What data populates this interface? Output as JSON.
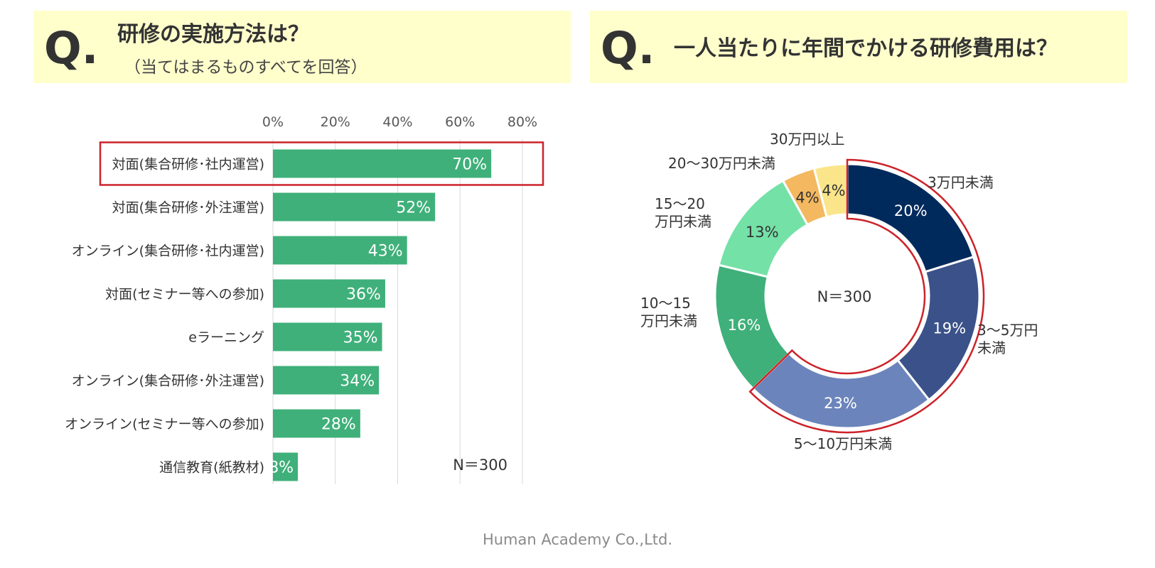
{
  "left_panel": {
    "q_mark": "Q.",
    "title": "研修の実施方法は？",
    "subtitle": "（当てはまるものすべてを回答）"
  },
  "right_panel": {
    "q_mark": "Q.",
    "title": "一人当たりに年間でかける研修費用は？"
  },
  "footer": "Human Academy Co.,Ltd.",
  "colors": {
    "bar": "#3fb07a",
    "highlight": "#cc2229",
    "panel_bg": "#ffffcc"
  },
  "chart_data": [
    {
      "type": "bar",
      "orientation": "horizontal",
      "categories": [
        "対面(集合研修･社内運営)",
        "対面(集合研修･外注運営)",
        "オンライン(集合研修･社内運営)",
        "対面(セミナー等への参加)",
        "eラーニング",
        "オンライン(集合研修･外注運営)",
        "オンライン(セミナー等への参加)",
        "通信教育(紙教材)"
      ],
      "values": [
        70,
        52,
        43,
        36,
        35,
        34,
        28,
        8
      ],
      "value_labels": [
        "70%",
        "52%",
        "43%",
        "36%",
        "35%",
        "34%",
        "28%",
        "8%"
      ],
      "xlim": [
        0,
        80
      ],
      "xticks": [
        "0%",
        "20%",
        "40%",
        "60%",
        "80%"
      ],
      "grid": true,
      "highlighted_category": "対面(集合研修･社内運営)",
      "annotation": "N＝300"
    },
    {
      "type": "pie",
      "donut": true,
      "center_label": "N＝300",
      "slices": [
        {
          "label": "3万円未満",
          "value": 20,
          "value_label": "20%",
          "color": "#012a5c"
        },
        {
          "label": "3～5万円未満",
          "value": 19,
          "value_label": "19%",
          "color": "#3a5289"
        },
        {
          "label": "5～10万円未満",
          "value": 23,
          "value_label": "23%",
          "color": "#6b84bb"
        },
        {
          "label": "10～15万円未満",
          "value": 16,
          "value_label": "16%",
          "color": "#3fb07a"
        },
        {
          "label": "15～20万円未満",
          "value": 13,
          "value_label": "13%",
          "color": "#74e1a7"
        },
        {
          "label": "20～30万円未満",
          "value": 4,
          "value_label": "4%",
          "color": "#f4b860"
        },
        {
          "label": "30万円以上",
          "value": 4,
          "value_label": "4%",
          "color": "#fbe58a"
        }
      ],
      "outer_labels": [
        [
          "3万円未満"
        ],
        [
          "3～5万円",
          "未満"
        ],
        [
          "5～10万円未満"
        ],
        [
          "10～15",
          "万円未満"
        ],
        [
          "15～20",
          "万円未満"
        ],
        [
          "20～30万円未満"
        ],
        [
          "30万円以上"
        ]
      ],
      "highlighted_slices": [
        "3万円未満",
        "3～5万円未満",
        "5～10万円未満"
      ]
    }
  ]
}
